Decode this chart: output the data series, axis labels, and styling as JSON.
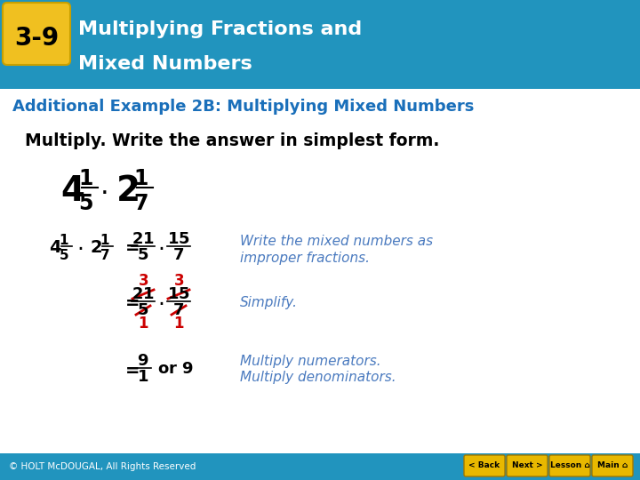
{
  "header_bg": "#2194be",
  "badge_bg": "#f0c020",
  "badge_text": "3-9",
  "title_line1": "Multiplying Fractions and",
  "title_line2": "Mixed Numbers",
  "subheader_text": "Additional Example 2B: Multiplying Mixed Numbers",
  "subheader_color": "#1a6fba",
  "body_bg": "#ffffff",
  "instruction": "Multiply. Write the answer in simplest form.",
  "footer_bg": "#2194be",
  "footer_text": "© HOLT McDOUGAL, All Rights Reserved",
  "black": "#000000",
  "comment_color": "#4a7abf",
  "red": "#cc0000",
  "badge_color": "#e8b800",
  "btn_labels": [
    "< Back",
    "Next >",
    "Lesson",
    "Main"
  ]
}
